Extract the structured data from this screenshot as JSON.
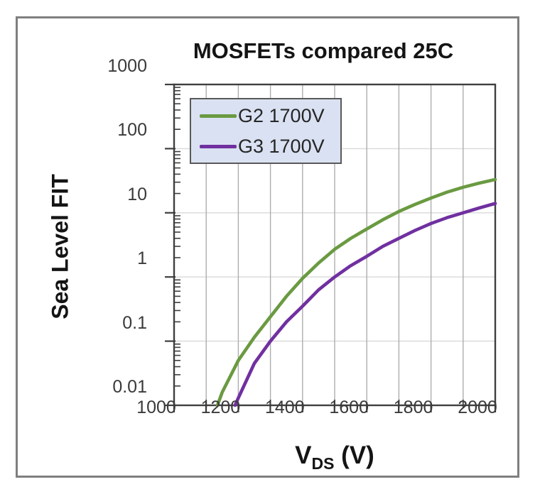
{
  "chart_data": {
    "type": "line",
    "title": "MOSFETs compared 25C",
    "xlabel": "V_DS (V)",
    "xlabel_parts": {
      "main": "V",
      "sub": "DS",
      "unit": " (V)"
    },
    "ylabel": "Sea Level FIT",
    "x_scale": "linear",
    "y_scale": "log",
    "xlim": [
      1000,
      2000
    ],
    "ylim": [
      0.01,
      1000
    ],
    "x_major_ticks": [
      1000,
      1200,
      1400,
      1600,
      1800,
      2000
    ],
    "x_tick_labels": [
      "1000",
      "1200",
      "1400",
      "1600",
      "1800",
      "2000"
    ],
    "x_minor_tick_step": 100,
    "y_major_ticks": [
      1000,
      100,
      10,
      1,
      0.1,
      0.01
    ],
    "y_tick_labels": [
      "1000",
      "100",
      "10",
      "1",
      "0.1",
      "0.01"
    ],
    "grid": {
      "vertical_step_v": 100,
      "horizontal": "per-decade",
      "y_minor_ticks": true
    },
    "legend": {
      "position": "top-left-inside",
      "entries": [
        "G2 1700V",
        "G3 1700V"
      ]
    },
    "series": [
      {
        "name": "G2 1700V",
        "color": "#6a9a41",
        "points": [
          [
            1135,
            0.01
          ],
          [
            1150,
            0.016
          ],
          [
            1200,
            0.05
          ],
          [
            1250,
            0.115
          ],
          [
            1300,
            0.24
          ],
          [
            1350,
            0.5
          ],
          [
            1400,
            0.95
          ],
          [
            1450,
            1.65
          ],
          [
            1500,
            2.7
          ],
          [
            1550,
            4.0
          ],
          [
            1600,
            5.6
          ],
          [
            1650,
            7.8
          ],
          [
            1700,
            10.5
          ],
          [
            1750,
            13.5
          ],
          [
            1800,
            17
          ],
          [
            1850,
            21
          ],
          [
            1900,
            25
          ],
          [
            1950,
            29
          ],
          [
            2000,
            33
          ]
        ]
      },
      {
        "name": "G3 1700V",
        "color": "#7030a0",
        "points": [
          [
            1190,
            0.01
          ],
          [
            1200,
            0.013
          ],
          [
            1250,
            0.045
          ],
          [
            1300,
            0.1
          ],
          [
            1350,
            0.2
          ],
          [
            1400,
            0.35
          ],
          [
            1450,
            0.63
          ],
          [
            1500,
            1.0
          ],
          [
            1550,
            1.5
          ],
          [
            1600,
            2.1
          ],
          [
            1650,
            3.0
          ],
          [
            1700,
            4.0
          ],
          [
            1750,
            5.3
          ],
          [
            1800,
            6.8
          ],
          [
            1850,
            8.4
          ],
          [
            1900,
            10.0
          ],
          [
            1950,
            11.9
          ],
          [
            2000,
            14.0
          ]
        ]
      }
    ],
    "colors": {
      "frame_border": "#7f7f7f",
      "plot_border": "#3f3f3f",
      "axis": "#3f3f3f",
      "grid_vertical": "#aeaeae",
      "grid_horizontal": "#d9d9d9",
      "tick": "#3f3f3f",
      "text": "#141414",
      "tick_label": "#3a3a3a",
      "legend_bg": "#d9e1f2",
      "legend_border": "#595959"
    }
  }
}
